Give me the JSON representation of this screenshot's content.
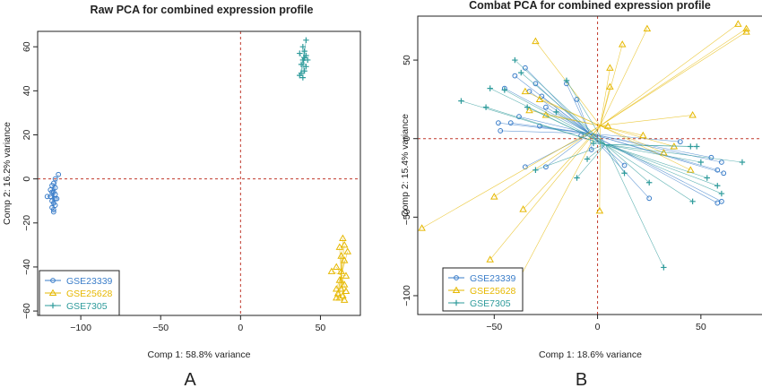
{
  "chart_data": [
    {
      "type": "scatter",
      "title": "Raw PCA for combined expression profile",
      "xlabel": "Comp 1: 58.8% variance",
      "ylabel": "Comp 2: 16.2% variance",
      "panel_label": "A",
      "xlim": [
        -127,
        75
      ],
      "ylim": [
        -62,
        67
      ],
      "xticks": [
        -100,
        -50,
        0,
        50
      ],
      "xtick_labels": [
        "−100",
        "−50",
        "0",
        "50"
      ],
      "yticks": [
        -60,
        -40,
        -20,
        0,
        20,
        40,
        60
      ],
      "ytick_labels": [
        "−60",
        "−40",
        "−20",
        "0",
        "20",
        "40",
        "60"
      ],
      "reference_lines": {
        "x": 0,
        "y": 0,
        "color": "#c0392b",
        "style": "dashed"
      },
      "centroid_spokes": true,
      "legend_position": "bottom-left",
      "series": [
        {
          "name": "GSE23339",
          "color": "#3a7dc9",
          "marker": "circle",
          "points": [
            [
              -114,
              2
            ],
            [
              -116,
              0
            ],
            [
              -117,
              -2
            ],
            [
              -118,
              -3
            ],
            [
              -116,
              -4
            ],
            [
              -119,
              -5
            ],
            [
              -117,
              -6
            ],
            [
              -116,
              -7
            ],
            [
              -119,
              -8
            ],
            [
              -121,
              -8
            ],
            [
              -116,
              -9
            ],
            [
              -118,
              -10
            ],
            [
              -117,
              -11
            ],
            [
              -116,
              -12
            ],
            [
              -118,
              -13
            ],
            [
              -117,
              -14
            ],
            [
              -117,
              -15
            ],
            [
              -115,
              -9
            ],
            [
              -118,
              -6
            ]
          ]
        },
        {
          "name": "GSE25628",
          "color": "#e6b800",
          "marker": "triangle",
          "points": [
            [
              64,
              -27
            ],
            [
              65,
              -30
            ],
            [
              62,
              -31
            ],
            [
              67,
              -33
            ],
            [
              63,
              -35
            ],
            [
              65,
              -37
            ],
            [
              60,
              -40
            ],
            [
              57,
              -42
            ],
            [
              63,
              -42
            ],
            [
              66,
              -44
            ],
            [
              62,
              -46
            ],
            [
              65,
              -48
            ],
            [
              60,
              -50
            ],
            [
              63,
              -50
            ],
            [
              66,
              -51
            ],
            [
              61,
              -52
            ],
            [
              64,
              -53
            ],
            [
              62,
              -54
            ],
            [
              65,
              -55
            ],
            [
              60,
              -54
            ]
          ]
        },
        {
          "name": "GSE7305",
          "color": "#2e9b9b",
          "marker": "plus",
          "points": [
            [
              41,
              63
            ],
            [
              39,
              60
            ],
            [
              40,
              58
            ],
            [
              37,
              57
            ],
            [
              41,
              56
            ],
            [
              42,
              54
            ],
            [
              39,
              54
            ],
            [
              38,
              52
            ],
            [
              41,
              51
            ],
            [
              40,
              49
            ],
            [
              38,
              48
            ],
            [
              39,
              46
            ],
            [
              37,
              47
            ],
            [
              40,
              55
            ]
          ]
        }
      ]
    },
    {
      "type": "scatter",
      "title": "Combat PCA for combined expression profile",
      "xlabel": "Comp 1: 18.6% variance",
      "ylabel": "Comp 2: 15.4% variance",
      "panel_label": "B",
      "xlim": [
        -87,
        80
      ],
      "ylim": [
        -112,
        78
      ],
      "xticks": [
        -50,
        0,
        50
      ],
      "xtick_labels": [
        "−50",
        "0",
        "50"
      ],
      "yticks": [
        -100,
        -50,
        0,
        50
      ],
      "ytick_labels": [
        "−100",
        "−50",
        "0",
        "50"
      ],
      "reference_lines": {
        "x": 0,
        "y": 0,
        "color": "#c0392b",
        "style": "dashed"
      },
      "centroid_spokes": true,
      "legend_position": "bottom-left",
      "series": [
        {
          "name": "GSE23339",
          "color": "#3a7dc9",
          "marker": "circle",
          "points": [
            [
              -35,
              45
            ],
            [
              -40,
              40
            ],
            [
              -30,
              35
            ],
            [
              -45,
              32
            ],
            [
              -33,
              30
            ],
            [
              -27,
              27
            ],
            [
              -10,
              25
            ],
            [
              -25,
              20
            ],
            [
              -38,
              14
            ],
            [
              -48,
              10
            ],
            [
              -42,
              10
            ],
            [
              -28,
              8
            ],
            [
              -47,
              5
            ],
            [
              -8,
              2
            ],
            [
              -3,
              -7
            ],
            [
              -35,
              -18
            ],
            [
              -25,
              -18
            ],
            [
              13,
              -17
            ],
            [
              40,
              -2
            ],
            [
              55,
              -12
            ],
            [
              60,
              -15
            ],
            [
              58,
              -20
            ],
            [
              61,
              -22
            ],
            [
              25,
              -38
            ],
            [
              60,
              -40
            ],
            [
              58,
              -41
            ],
            [
              -15,
              35
            ]
          ]
        },
        {
          "name": "GSE25628",
          "color": "#e6b800",
          "marker": "triangle",
          "points": [
            [
              -30,
              62
            ],
            [
              -33,
              18
            ],
            [
              -25,
              15
            ],
            [
              -35,
              30
            ],
            [
              -85,
              -57
            ],
            [
              -50,
              -37
            ],
            [
              -36,
              -45
            ],
            [
              -52,
              -77
            ],
            [
              -43,
              -102
            ],
            [
              12,
              60
            ],
            [
              24,
              70
            ],
            [
              6,
              33
            ],
            [
              5,
              8
            ],
            [
              22,
              2
            ],
            [
              37,
              -5
            ],
            [
              46,
              15
            ],
            [
              32,
              -9
            ],
            [
              68,
              73
            ],
            [
              72,
              70
            ],
            [
              72,
              68
            ],
            [
              6,
              45
            ],
            [
              1,
              -46
            ],
            [
              45,
              -20
            ],
            [
              -28,
              25
            ]
          ]
        },
        {
          "name": "GSE7305",
          "color": "#2e9b9b",
          "marker": "plus",
          "points": [
            [
              -40,
              50
            ],
            [
              -37,
              42
            ],
            [
              -52,
              32
            ],
            [
              -45,
              31
            ],
            [
              -34,
              20
            ],
            [
              -66,
              24
            ],
            [
              -54,
              20
            ],
            [
              -20,
              17
            ],
            [
              -5,
              -13
            ],
            [
              -30,
              -20
            ],
            [
              -10,
              -25
            ],
            [
              13,
              -22
            ],
            [
              25,
              -28
            ],
            [
              45,
              -5
            ],
            [
              48,
              -5
            ],
            [
              50,
              -15
            ],
            [
              53,
              -25
            ],
            [
              58,
              -30
            ],
            [
              70,
              -15
            ],
            [
              32,
              -82
            ],
            [
              46,
              -40
            ],
            [
              -2,
              -3
            ],
            [
              60,
              -35
            ],
            [
              -15,
              37
            ]
          ]
        }
      ]
    }
  ]
}
